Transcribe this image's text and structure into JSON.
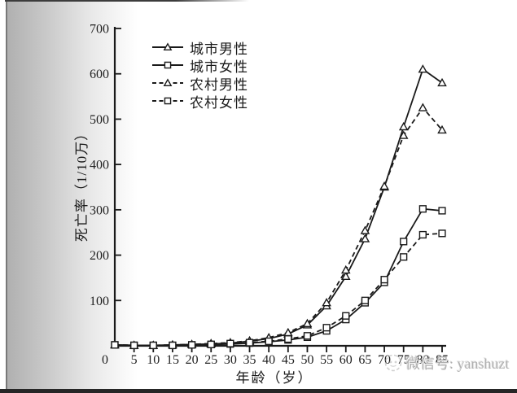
{
  "watermark": {
    "text": "微信号: yanshuzt"
  },
  "colors": {
    "line": "#1a1a1a",
    "axis": "#1a1a1a",
    "tick_label": "#1f1f1f",
    "watermark": "#b0b0b0"
  },
  "chart_data": {
    "type": "line",
    "title": "",
    "xlabel": "年龄（岁）",
    "ylabel": "死亡率（1/10万）",
    "x": [
      0,
      5,
      10,
      15,
      20,
      25,
      30,
      35,
      40,
      45,
      50,
      55,
      60,
      65,
      70,
      75,
      80,
      85
    ],
    "xlim": [
      0,
      85
    ],
    "ylim": [
      0,
      700
    ],
    "y_ticks": [
      0,
      100,
      200,
      300,
      400,
      500,
      600,
      700
    ],
    "grid": false,
    "legend_position": "upper-left-inside",
    "marker_fill": "#ffffff",
    "series": [
      {
        "name": "城市男性",
        "key": "urban-male",
        "line_style": "solid",
        "marker": "triangle",
        "values": [
          2,
          1,
          1,
          2,
          3,
          4,
          6,
          10,
          16,
          26,
          46,
          88,
          153,
          236,
          350,
          483,
          610,
          580
        ]
      },
      {
        "name": "城市女性",
        "key": "urban-female",
        "line_style": "solid",
        "marker": "square",
        "values": [
          2,
          1,
          1,
          1,
          2,
          3,
          4,
          6,
          9,
          13,
          19,
          33,
          58,
          95,
          140,
          230,
          302,
          298
        ]
      },
      {
        "name": "农村男性",
        "key": "rural-male",
        "line_style": "dashed",
        "marker": "triangle",
        "values": [
          2,
          1,
          1,
          2,
          3,
          5,
          7,
          11,
          18,
          29,
          49,
          95,
          167,
          254,
          352,
          464,
          525,
          476
        ]
      },
      {
        "name": "农村女性",
        "key": "rural-female",
        "line_style": "dashed",
        "marker": "square",
        "values": [
          2,
          1,
          1,
          1,
          2,
          3,
          5,
          7,
          10,
          15,
          22,
          40,
          66,
          100,
          146,
          196,
          245,
          248
        ]
      }
    ]
  }
}
